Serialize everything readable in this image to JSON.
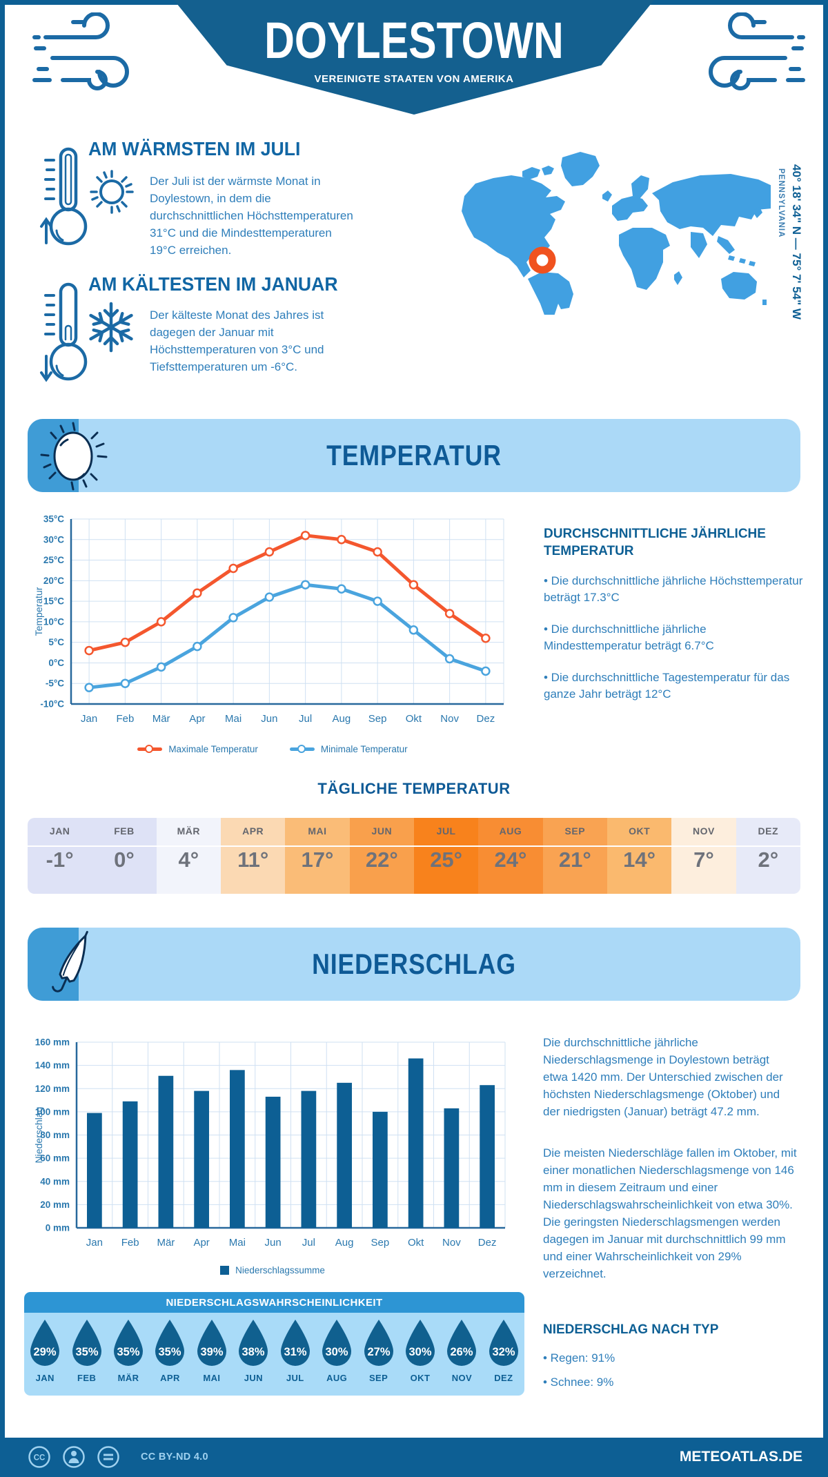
{
  "header": {
    "title": "DOYLESTOWN",
    "subtitle": "VEREINIGTE STAATEN VON AMERIKA"
  },
  "warmest": {
    "title": "AM WÄRMSTEN IM JULI",
    "text": "Der Juli ist der wärmste Monat in Doylestown, in dem die durchschnittlichen Höchsttemperaturen 31°C und die Mindesttemperaturen 19°C erreichen."
  },
  "coldest": {
    "title": "AM KÄLTESTEN IM JANUAR",
    "text": "Der kälteste Monat des Jahres ist dagegen der Januar mit Höchsttemperaturen von 3°C und Tiefsttemperaturen um -6°C."
  },
  "location": {
    "coordinates": "40° 18' 34\" N — 75° 7' 54\" W",
    "region": "PENNSYLVANIA",
    "marker_color": "#f0521f",
    "map_color": "#41a0e1"
  },
  "temperature_section": {
    "title": "TEMPERATUR",
    "annual": {
      "heading": "DURCHSCHNITTLICHE JÄHRLICHE TEMPERATUR",
      "bullets": [
        "• Die durchschnittliche jährliche Höchsttemperatur beträgt 17.3°C",
        "• Die durchschnittliche jährliche Mindesttemperatur beträgt 6.7°C",
        "• Die durchschnittliche Tagestemperatur für das ganze Jahr beträgt 12°C"
      ]
    }
  },
  "daily_table": {
    "title": "TÄGLICHE TEMPERATUR",
    "months": [
      {
        "label": "JAN",
        "value": "-1°",
        "bg": "#dee2f6"
      },
      {
        "label": "FEB",
        "value": "0°",
        "bg": "#dee2f6"
      },
      {
        "label": "MÄR",
        "value": "4°",
        "bg": "#f2f4fb"
      },
      {
        "label": "APR",
        "value": "11°",
        "bg": "#fbd9b3"
      },
      {
        "label": "MAI",
        "value": "17°",
        "bg": "#fabc77"
      },
      {
        "label": "JUN",
        "value": "22°",
        "bg": "#f9a04c"
      },
      {
        "label": "JUL",
        "value": "25°",
        "bg": "#f8821c"
      },
      {
        "label": "AUG",
        "value": "24°",
        "bg": "#f88d33"
      },
      {
        "label": "SEP",
        "value": "21°",
        "bg": "#f9a352"
      },
      {
        "label": "OKT",
        "value": "14°",
        "bg": "#fab96e"
      },
      {
        "label": "NOV",
        "value": "7°",
        "bg": "#fdeedd"
      },
      {
        "label": "DEZ",
        "value": "2°",
        "bg": "#e7eaf8"
      }
    ]
  },
  "precipitation_section": {
    "title": "NIEDERSCHLAG",
    "paragraphs": [
      "Die durchschnittliche jährliche Niederschlagsmenge in Doylestown beträgt etwa 1420 mm. Der Unterschied zwischen der höchsten Niederschlagsmenge (Oktober) und der niedrigsten (Januar) beträgt 47.2 mm.",
      "Die meisten Niederschläge fallen im Oktober, mit einer monatlichen Niederschlagsmenge von 146 mm in diesem Zeitraum und einer Niederschlagswahrscheinlichkeit von etwa 30%. Die geringsten Niederschlagsmengen werden dagegen im Januar mit durchschnittlich 99 mm und einer Wahrscheinlichkeit von 29% verzeichnet."
    ],
    "by_type": {
      "heading": "NIEDERSCHLAG NACH TYP",
      "items": [
        "• Regen: 91%",
        "• Schnee: 9%"
      ]
    }
  },
  "probability": {
    "title": "NIEDERSCHLAGSWAHRSCHEINLICHKEIT",
    "months": [
      {
        "label": "JAN",
        "value": "29%"
      },
      {
        "label": "FEB",
        "value": "35%"
      },
      {
        "label": "MÄR",
        "value": "35%"
      },
      {
        "label": "APR",
        "value": "35%"
      },
      {
        "label": "MAI",
        "value": "39%"
      },
      {
        "label": "JUN",
        "value": "38%"
      },
      {
        "label": "JUL",
        "value": "31%"
      },
      {
        "label": "AUG",
        "value": "30%"
      },
      {
        "label": "SEP",
        "value": "27%"
      },
      {
        "label": "OKT",
        "value": "30%"
      },
      {
        "label": "NOV",
        "value": "26%"
      },
      {
        "label": "DEZ",
        "value": "32%"
      }
    ],
    "drop_color": "#10608f"
  },
  "footer": {
    "license": "CC BY-ND 4.0",
    "site": "METEOATLAS.DE"
  },
  "chart_data": [
    {
      "type": "line",
      "title": "Temperatur",
      "categories": [
        "Jan",
        "Feb",
        "Mär",
        "Apr",
        "Mai",
        "Jun",
        "Jul",
        "Aug",
        "Sep",
        "Okt",
        "Nov",
        "Dez"
      ],
      "series": [
        {
          "name": "Maximale Temperatur",
          "color": "#f4572e",
          "values": [
            3,
            5,
            10,
            17,
            23,
            27,
            31,
            30,
            27,
            19,
            12,
            6
          ]
        },
        {
          "name": "Minimale Temperatur",
          "color": "#4aa4de",
          "values": [
            -6,
            -5,
            -1,
            4,
            11,
            16,
            19,
            18,
            15,
            8,
            1,
            -2
          ]
        }
      ],
      "ylabel": "Temperatur",
      "ylim": [
        -10,
        35
      ],
      "ytick_step": 5,
      "ytick_suffix": "°C",
      "grid": true,
      "legend_position": "bottom"
    },
    {
      "type": "bar",
      "title": "Niederschlag",
      "categories": [
        "Jan",
        "Feb",
        "Mär",
        "Apr",
        "Mai",
        "Jun",
        "Jul",
        "Aug",
        "Sep",
        "Okt",
        "Nov",
        "Dez"
      ],
      "series": [
        {
          "name": "Niederschlagssumme",
          "color": "#0d5f94",
          "values": [
            99,
            109,
            131,
            118,
            136,
            113,
            118,
            125,
            100,
            146,
            103,
            123
          ]
        }
      ],
      "ylabel": "Niederschlag",
      "ylim": [
        0,
        160
      ],
      "ytick_step": 20,
      "ytick_suffix": " mm",
      "grid": true,
      "legend_position": "bottom"
    }
  ]
}
